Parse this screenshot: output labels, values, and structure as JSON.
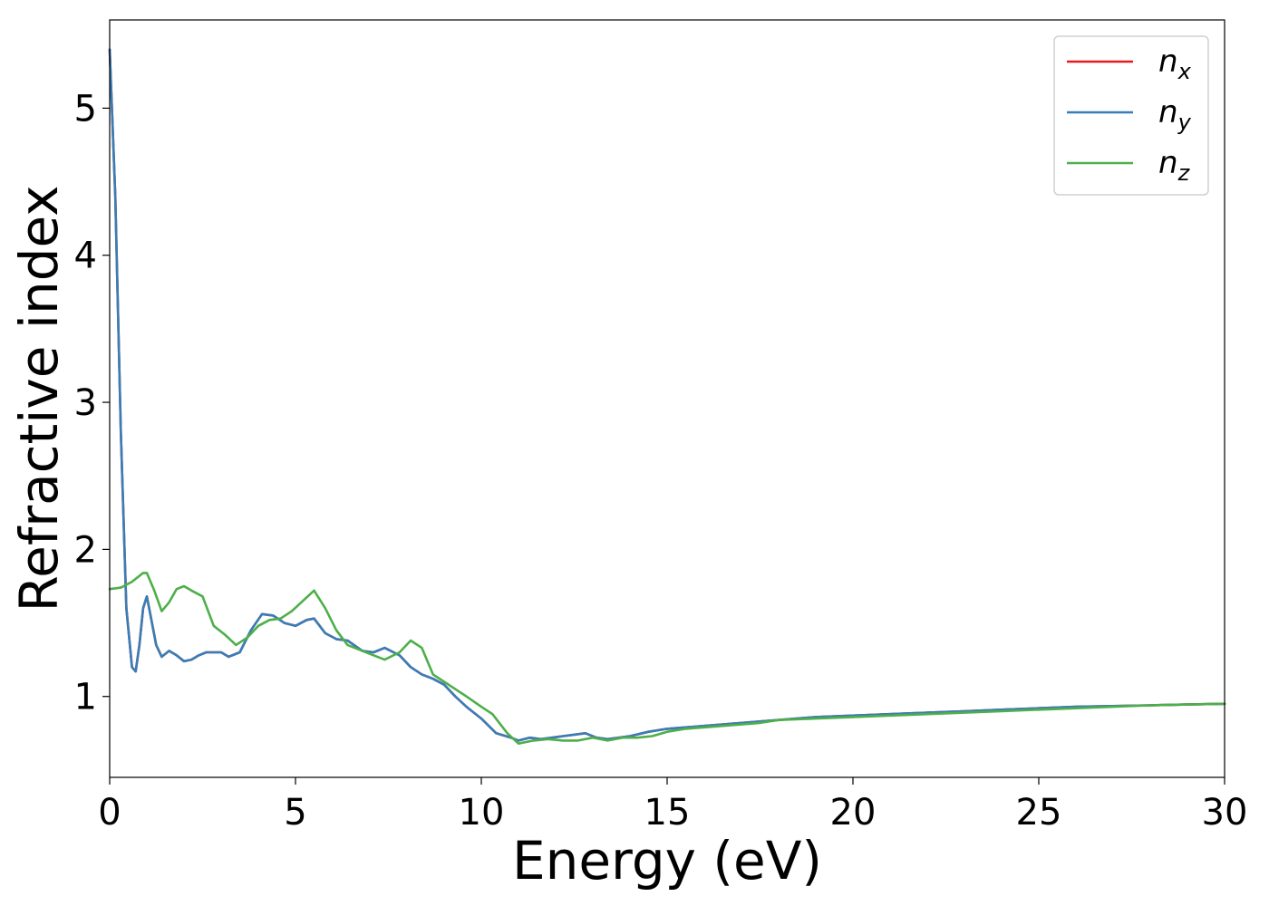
{
  "chart_data": {
    "type": "line",
    "xlabel": "Energy (eV)",
    "ylabel": "Refractive index",
    "xlim": [
      0,
      30
    ],
    "ylim": [
      0.45,
      5.6
    ],
    "xticks": [
      0,
      5,
      10,
      15,
      20,
      25,
      30
    ],
    "yticks": [
      1,
      2,
      3,
      4,
      5
    ],
    "grid": false,
    "legend_position": "top-right",
    "series": [
      {
        "name": "n_x",
        "legend_base": "n",
        "legend_sub": "x",
        "color": "#e41a1c",
        "x": [
          0,
          0.15,
          0.3,
          0.45,
          0.6,
          0.7,
          0.8,
          0.9,
          1.0,
          1.1,
          1.25,
          1.4,
          1.6,
          1.8,
          2.0,
          2.2,
          2.4,
          2.6,
          2.8,
          3.0,
          3.2,
          3.5,
          3.8,
          4.1,
          4.4,
          4.7,
          5.0,
          5.3,
          5.5,
          5.8,
          6.1,
          6.4,
          6.8,
          7.1,
          7.4,
          7.8,
          8.1,
          8.4,
          8.7,
          9.0,
          9.3,
          9.6,
          10.0,
          10.4,
          10.8,
          11.0,
          11.3,
          11.6,
          11.9,
          12.2,
          12.5,
          12.8,
          13.1,
          13.4,
          13.7,
          14.0,
          14.5,
          15.0,
          15.5,
          16.0,
          16.5,
          17.0,
          17.5,
          18.0,
          19.0,
          20.0,
          21.0,
          22.0,
          23.0,
          24.0,
          25.0,
          26.0,
          27.0,
          28.0,
          29.0,
          30.0
        ],
        "y": [
          5.4,
          4.4,
          2.8,
          1.6,
          1.2,
          1.17,
          1.35,
          1.6,
          1.68,
          1.55,
          1.35,
          1.27,
          1.31,
          1.28,
          1.24,
          1.25,
          1.28,
          1.3,
          1.3,
          1.3,
          1.27,
          1.3,
          1.45,
          1.56,
          1.55,
          1.5,
          1.48,
          1.52,
          1.53,
          1.43,
          1.39,
          1.38,
          1.31,
          1.3,
          1.33,
          1.28,
          1.2,
          1.15,
          1.12,
          1.08,
          1.0,
          0.93,
          0.85,
          0.75,
          0.72,
          0.7,
          0.72,
          0.71,
          0.72,
          0.73,
          0.74,
          0.75,
          0.72,
          0.71,
          0.72,
          0.73,
          0.76,
          0.78,
          0.79,
          0.8,
          0.81,
          0.82,
          0.83,
          0.84,
          0.86,
          0.87,
          0.88,
          0.89,
          0.9,
          0.91,
          0.92,
          0.93,
          0.935,
          0.94,
          0.945,
          0.95
        ]
      },
      {
        "name": "n_y",
        "legend_base": "n",
        "legend_sub": "y",
        "color": "#377eb8",
        "x": [
          0,
          0.15,
          0.3,
          0.45,
          0.6,
          0.7,
          0.8,
          0.9,
          1.0,
          1.1,
          1.25,
          1.4,
          1.6,
          1.8,
          2.0,
          2.2,
          2.4,
          2.6,
          2.8,
          3.0,
          3.2,
          3.5,
          3.8,
          4.1,
          4.4,
          4.7,
          5.0,
          5.3,
          5.5,
          5.8,
          6.1,
          6.4,
          6.8,
          7.1,
          7.4,
          7.8,
          8.1,
          8.4,
          8.7,
          9.0,
          9.3,
          9.6,
          10.0,
          10.4,
          10.8,
          11.0,
          11.3,
          11.6,
          11.9,
          12.2,
          12.5,
          12.8,
          13.1,
          13.4,
          13.7,
          14.0,
          14.5,
          15.0,
          15.5,
          16.0,
          16.5,
          17.0,
          17.5,
          18.0,
          19.0,
          20.0,
          21.0,
          22.0,
          23.0,
          24.0,
          25.0,
          26.0,
          27.0,
          28.0,
          29.0,
          30.0
        ],
        "y": [
          5.4,
          4.4,
          2.8,
          1.6,
          1.2,
          1.17,
          1.35,
          1.6,
          1.68,
          1.55,
          1.35,
          1.27,
          1.31,
          1.28,
          1.24,
          1.25,
          1.28,
          1.3,
          1.3,
          1.3,
          1.27,
          1.3,
          1.45,
          1.56,
          1.55,
          1.5,
          1.48,
          1.52,
          1.53,
          1.43,
          1.39,
          1.38,
          1.31,
          1.3,
          1.33,
          1.28,
          1.2,
          1.15,
          1.12,
          1.08,
          1.0,
          0.93,
          0.85,
          0.75,
          0.72,
          0.7,
          0.72,
          0.71,
          0.72,
          0.73,
          0.74,
          0.75,
          0.72,
          0.71,
          0.72,
          0.73,
          0.76,
          0.78,
          0.79,
          0.8,
          0.81,
          0.82,
          0.83,
          0.84,
          0.86,
          0.87,
          0.88,
          0.89,
          0.9,
          0.91,
          0.92,
          0.93,
          0.935,
          0.94,
          0.945,
          0.95
        ]
      },
      {
        "name": "n_z",
        "legend_base": "n",
        "legend_sub": "z",
        "color": "#4daf4a",
        "x": [
          0,
          0.3,
          0.6,
          0.9,
          1.0,
          1.2,
          1.4,
          1.6,
          1.8,
          2.0,
          2.2,
          2.5,
          2.8,
          3.1,
          3.4,
          3.7,
          4.0,
          4.3,
          4.6,
          4.9,
          5.2,
          5.5,
          5.8,
          6.1,
          6.4,
          6.8,
          7.1,
          7.4,
          7.8,
          8.1,
          8.4,
          8.7,
          9.0,
          9.3,
          9.6,
          10.0,
          10.3,
          10.7,
          11.0,
          11.4,
          11.8,
          12.2,
          12.6,
          13.0,
          13.4,
          13.8,
          14.2,
          14.6,
          15.0,
          15.5,
          16.0,
          16.5,
          17.0,
          17.5,
          18.0,
          19.0,
          20.0,
          21.0,
          22.0,
          23.0,
          24.0,
          25.0,
          26.0,
          27.0,
          28.0,
          29.0,
          30.0
        ],
        "y": [
          1.73,
          1.74,
          1.78,
          1.84,
          1.84,
          1.72,
          1.58,
          1.64,
          1.73,
          1.75,
          1.72,
          1.68,
          1.48,
          1.42,
          1.35,
          1.4,
          1.48,
          1.52,
          1.53,
          1.58,
          1.65,
          1.72,
          1.6,
          1.45,
          1.35,
          1.31,
          1.28,
          1.25,
          1.3,
          1.38,
          1.33,
          1.15,
          1.1,
          1.05,
          1.0,
          0.93,
          0.88,
          0.75,
          0.68,
          0.7,
          0.71,
          0.7,
          0.7,
          0.72,
          0.7,
          0.72,
          0.72,
          0.73,
          0.76,
          0.78,
          0.79,
          0.8,
          0.81,
          0.82,
          0.84,
          0.85,
          0.86,
          0.87,
          0.88,
          0.89,
          0.9,
          0.91,
          0.92,
          0.93,
          0.94,
          0.945,
          0.95
        ]
      }
    ]
  }
}
